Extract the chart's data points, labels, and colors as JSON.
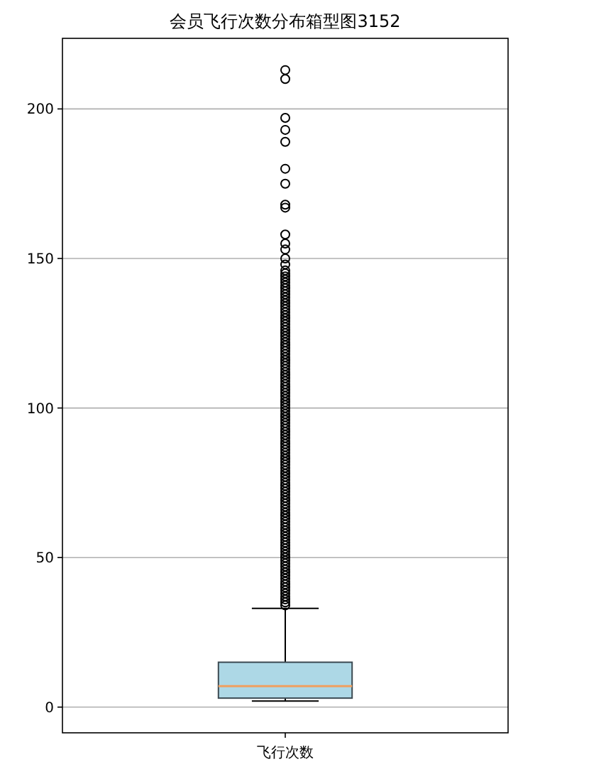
{
  "chart_data": {
    "type": "box",
    "title": "会员飞行次数分布箱型图3152",
    "categories": [
      "飞行次数"
    ],
    "series": [
      {
        "color": "#add8e6",
        "boxes": [
          {
            "low": 2,
            "q1": 3,
            "median": 7,
            "q3": 15,
            "high": 33,
            "outliers": [
              34,
              35,
              36,
              37,
              38,
              39,
              40,
              41,
              42,
              43,
              44,
              45,
              46,
              47,
              48,
              49,
              50,
              51,
              52,
              53,
              54,
              55,
              56,
              57,
              58,
              59,
              60,
              61,
              62,
              63,
              64,
              65,
              66,
              67,
              68,
              69,
              70,
              71,
              72,
              73,
              74,
              75,
              76,
              77,
              78,
              79,
              80,
              81,
              82,
              83,
              84,
              85,
              86,
              87,
              88,
              89,
              90,
              91,
              92,
              93,
              94,
              95,
              96,
              97,
              98,
              99,
              100,
              101,
              102,
              103,
              104,
              105,
              106,
              107,
              108,
              109,
              110,
              111,
              112,
              113,
              114,
              115,
              116,
              117,
              118,
              119,
              120,
              121,
              122,
              123,
              124,
              125,
              126,
              127,
              128,
              129,
              130,
              131,
              132,
              133,
              134,
              135,
              136,
              137,
              138,
              139,
              140,
              141,
              142,
              143,
              144,
              145,
              146,
              148,
              150,
              153,
              155,
              158,
              167,
              168,
              175,
              180,
              189,
              193,
              197,
              210,
              213
            ]
          }
        ]
      }
    ],
    "ylim": [
      -8.6,
      223.6
    ],
    "yticks": [
      0,
      50,
      100,
      150,
      200
    ],
    "grid": "y"
  }
}
